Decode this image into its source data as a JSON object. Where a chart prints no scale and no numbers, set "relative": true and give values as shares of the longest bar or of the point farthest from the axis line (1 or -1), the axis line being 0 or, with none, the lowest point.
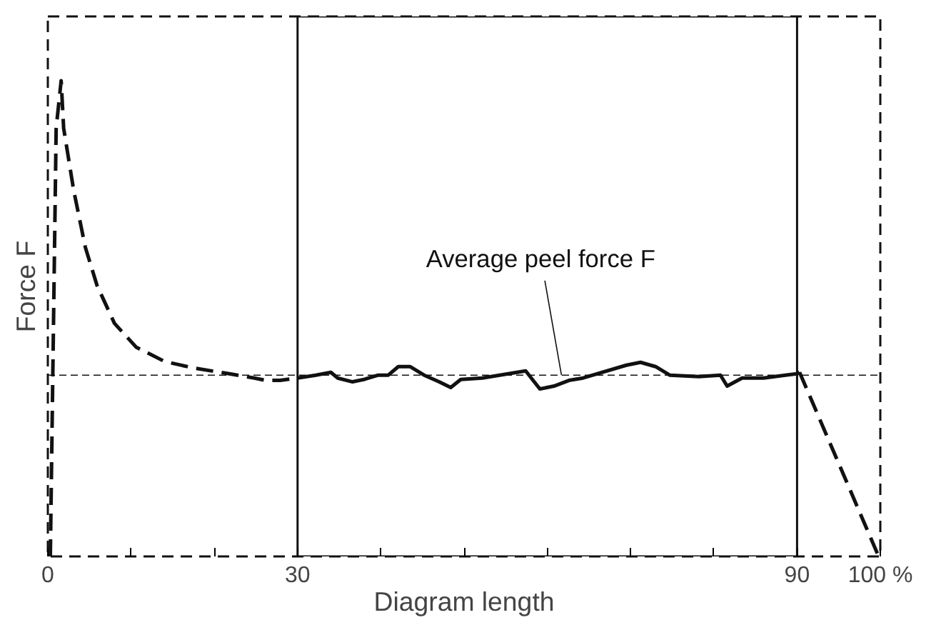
{
  "chart_data": {
    "type": "line",
    "relative": true,
    "xlabel": "Diagram length",
    "ylabel": "Force F",
    "xlim": [
      0,
      100
    ],
    "xticks": [
      0,
      {
        "value": 10,
        "label": null
      },
      {
        "value": 20,
        "label": null
      },
      30,
      {
        "value": 40,
        "label": null
      },
      {
        "value": 50,
        "label": null
      },
      {
        "value": 60,
        "label": null
      },
      {
        "value": 70,
        "label": null
      },
      {
        "value": 80,
        "label": null
      },
      90,
      {
        "value": 100,
        "label": "100 %"
      }
    ],
    "series": [
      {
        "color": "#111111",
        "line_style": "dashed",
        "x": [
          0.3,
          1.0,
          1.6,
          1.9,
          3.1,
          4.5,
          5.9,
          8.0,
          10.6,
          14.0,
          17.5,
          21.8,
          24.8,
          26.2,
          27.9,
          30.0
        ],
        "values": [
          0,
          0.9,
          1.0,
          0.9,
          0.77,
          0.65,
          0.57,
          0.49,
          0.44,
          0.41,
          0.396,
          0.384,
          0.375,
          0.37,
          0.37,
          0.375
        ]
      },
      {
        "color": "#111111",
        "line_style": "solid",
        "x": [
          30.0,
          32.2,
          34.0,
          34.8,
          36.6,
          38.0,
          39.7,
          40.9,
          42.1,
          43.5,
          45.2,
          47.0,
          48.4,
          49.6,
          52.2,
          57.4,
          59.1,
          60.8,
          62.6,
          64.3,
          69.5,
          71.2,
          73.0,
          74.7,
          78.2,
          80.8,
          81.6,
          83.4,
          86.0,
          88.6,
          90.0,
          90.3
        ],
        "values": [
          0.375,
          0.381,
          0.387,
          0.375,
          0.367,
          0.372,
          0.381,
          0.381,
          0.399,
          0.399,
          0.381,
          0.367,
          0.355,
          0.372,
          0.375,
          0.39,
          0.352,
          0.358,
          0.37,
          0.375,
          0.402,
          0.408,
          0.399,
          0.381,
          0.378,
          0.381,
          0.358,
          0.375,
          0.375,
          0.381,
          0.384,
          0.387
        ]
      },
      {
        "color": "#111111",
        "line_style": "dashed",
        "x": [
          90.3,
          99.8
        ],
        "values": [
          0.387,
          0
        ]
      }
    ],
    "ref_lines": [
      {
        "axis": "y",
        "value": 0.381,
        "line_style": "dashed"
      }
    ],
    "bands": [
      {
        "axis": "x",
        "from": 30,
        "to": 90
      }
    ],
    "annotations": [
      {
        "text": "Average peel force F",
        "x": 61.7,
        "y": 0.381
      }
    ],
    "grid": false
  }
}
